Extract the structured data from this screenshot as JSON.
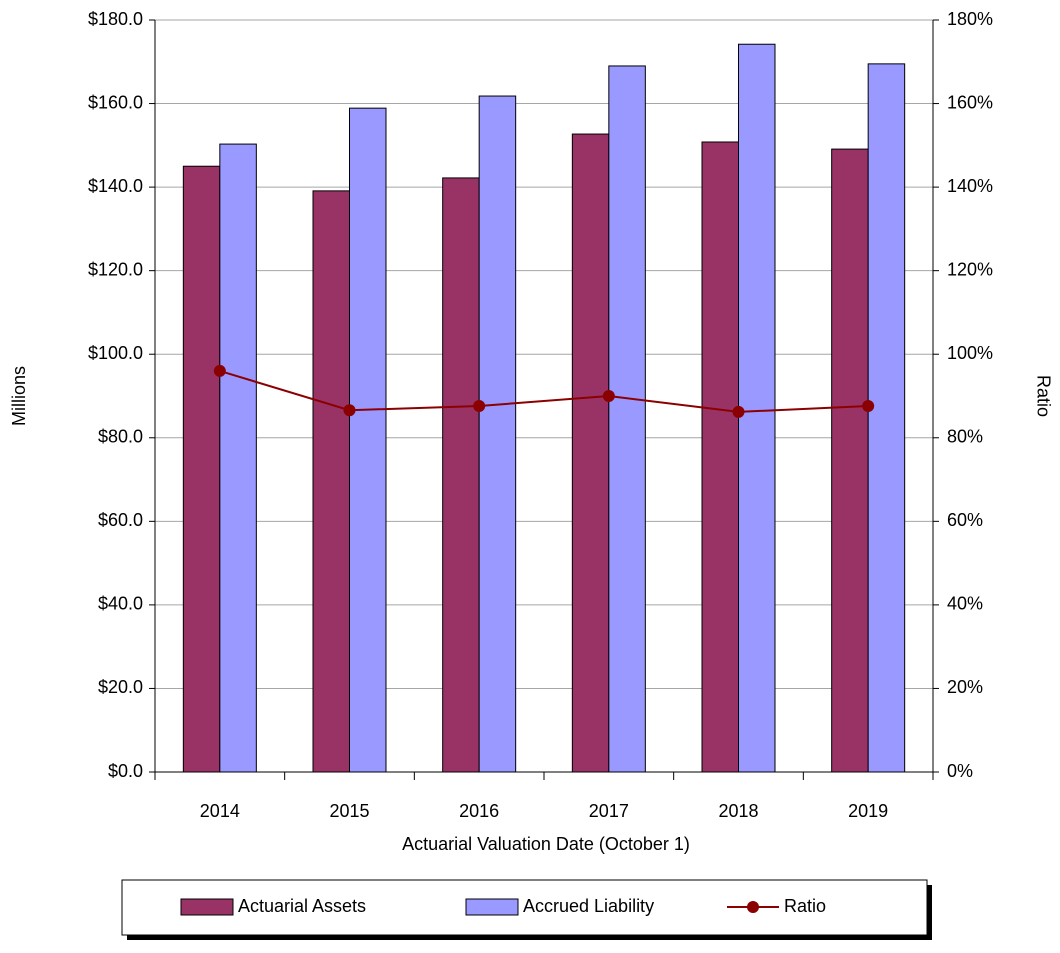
{
  "chart_data": {
    "type": "bar_line",
    "x_label": "Actuarial Valuation Date (October 1)",
    "y_label": "Millions",
    "y2_label": "Ratio",
    "categories": [
      "2014",
      "2015",
      "2016",
      "2017",
      "2018",
      "2019"
    ],
    "series": [
      {
        "name": "Actuarial Assets",
        "type": "bar",
        "color": "#993366",
        "values": [
          145.0,
          139.1,
          142.2,
          152.7,
          150.8,
          149.1
        ]
      },
      {
        "name": "Accrued Liability",
        "type": "bar",
        "color": "#9999ff",
        "values": [
          150.3,
          158.9,
          161.8,
          169.0,
          174.2,
          169.5
        ]
      },
      {
        "name": "Ratio",
        "type": "line",
        "axis": "y2",
        "color": "#8b0000",
        "values": [
          96.0,
          86.6,
          87.6,
          90.0,
          86.2,
          87.6
        ]
      }
    ],
    "ylim": [
      0,
      180
    ],
    "yticks": [
      {
        "value": 0,
        "label": "$0.0"
      },
      {
        "value": 20,
        "label": "$20.0"
      },
      {
        "value": 40,
        "label": "$40.0"
      },
      {
        "value": 60,
        "label": "$60.0"
      },
      {
        "value": 80,
        "label": "$80.0"
      },
      {
        "value": 100,
        "label": "$100.0"
      },
      {
        "value": 120,
        "label": "$120.0"
      },
      {
        "value": 140,
        "label": "$140.0"
      },
      {
        "value": 160,
        "label": "$160.0"
      },
      {
        "value": 180,
        "label": "$180.0"
      }
    ],
    "y2lim": [
      0,
      180
    ],
    "y2ticks": [
      {
        "value": 0,
        "label": "0%"
      },
      {
        "value": 20,
        "label": "20%"
      },
      {
        "value": 40,
        "label": "40%"
      },
      {
        "value": 60,
        "label": "60%"
      },
      {
        "value": 80,
        "label": "80%"
      },
      {
        "value": 100,
        "label": "100%"
      },
      {
        "value": 120,
        "label": "120%"
      },
      {
        "value": 140,
        "label": "140%"
      },
      {
        "value": 160,
        "label": "160%"
      },
      {
        "value": 180,
        "label": "180%"
      }
    ],
    "grid": true,
    "legend": "bottom"
  }
}
